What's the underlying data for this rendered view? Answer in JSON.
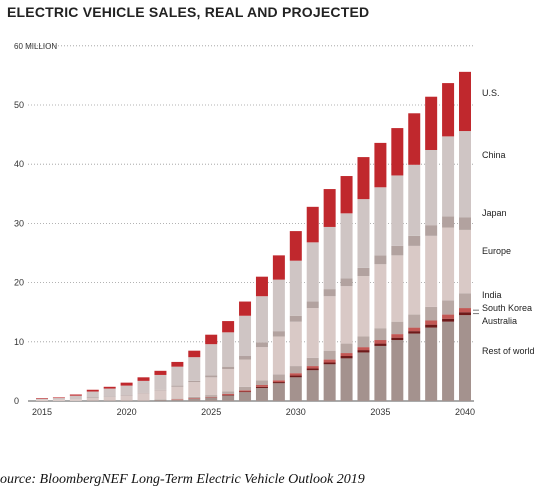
{
  "chart_data": {
    "type": "bar",
    "stacked": true,
    "title": "ELECTRIC VEHICLE SALES, REAL AND PROJECTED",
    "y_top_label": "60 MILLION",
    "ylim": [
      0,
      60
    ],
    "yticks": [
      0,
      10,
      20,
      30,
      40,
      50
    ],
    "xticks": [
      "2015",
      "2020",
      "2025",
      "2030",
      "2035",
      "2040"
    ],
    "categories": [
      "2015",
      "2016",
      "2017",
      "2018",
      "2019",
      "2020",
      "2021",
      "2022",
      "2023",
      "2024",
      "2025",
      "2026",
      "2027",
      "2028",
      "2029",
      "2030",
      "2031",
      "2032",
      "2033",
      "2034",
      "2035",
      "2036",
      "2037",
      "2038",
      "2039",
      "2040"
    ],
    "grid": "horizontal-dotted",
    "legend": "right-inline",
    "series": [
      {
        "name": "Rest of world",
        "color": "#a4928e",
        "values": [
          0.0,
          0.0,
          0.0,
          0.1,
          0.1,
          0.1,
          0.1,
          0.2,
          0.2,
          0.4,
          0.6,
          0.9,
          1.5,
          2.2,
          3.0,
          4.0,
          5.2,
          6.2,
          7.2,
          8.2,
          9.3,
          10.3,
          11.4,
          12.4,
          13.4,
          14.5
        ]
      },
      {
        "name": "Australia",
        "color": "#6e1919",
        "values": [
          0.0,
          0.0,
          0.0,
          0.0,
          0.0,
          0.0,
          0.0,
          0.0,
          0.0,
          0.0,
          0.0,
          0.1,
          0.1,
          0.2,
          0.2,
          0.3,
          0.3,
          0.3,
          0.4,
          0.4,
          0.4,
          0.4,
          0.4,
          0.5,
          0.5,
          0.5
        ]
      },
      {
        "name": "South Korea",
        "color": "#c25754",
        "values": [
          0.0,
          0.0,
          0.0,
          0.0,
          0.0,
          0.0,
          0.0,
          0.0,
          0.1,
          0.1,
          0.1,
          0.2,
          0.2,
          0.3,
          0.3,
          0.4,
          0.4,
          0.5,
          0.5,
          0.5,
          0.6,
          0.6,
          0.6,
          0.7,
          0.7,
          0.7
        ]
      },
      {
        "name": "India",
        "color": "#b8a8a4",
        "values": [
          0.0,
          0.0,
          0.0,
          0.0,
          0.0,
          0.0,
          0.0,
          0.1,
          0.1,
          0.2,
          0.3,
          0.4,
          0.6,
          0.8,
          1.0,
          1.2,
          1.4,
          1.5,
          1.6,
          1.8,
          2.0,
          2.1,
          2.2,
          2.3,
          2.4,
          2.5
        ]
      },
      {
        "name": "Europe",
        "color": "#d9c9c6",
        "values": [
          0.2,
          0.2,
          0.3,
          0.4,
          0.6,
          0.8,
          1.2,
          1.5,
          2.0,
          2.5,
          3.0,
          3.8,
          4.6,
          5.6,
          6.4,
          7.5,
          8.4,
          9.2,
          9.7,
          10.2,
          10.8,
          11.2,
          11.6,
          12.0,
          12.3,
          10.7
        ]
      },
      {
        "name": "Japan",
        "color": "#b2a29f",
        "values": [
          0.0,
          0.0,
          0.0,
          0.1,
          0.1,
          0.1,
          0.1,
          0.1,
          0.2,
          0.2,
          0.3,
          0.4,
          0.6,
          0.8,
          0.9,
          1.0,
          1.1,
          1.2,
          1.3,
          1.4,
          1.5,
          1.6,
          1.7,
          1.8,
          1.9,
          2.1
        ]
      },
      {
        "name": "China",
        "color": "#cfc5c4",
        "values": [
          0.2,
          0.3,
          0.6,
          1.0,
          1.3,
          1.6,
          2.0,
          2.5,
          3.2,
          4.0,
          5.3,
          5.8,
          6.8,
          7.8,
          8.7,
          9.3,
          10.0,
          10.5,
          11.0,
          11.6,
          11.5,
          11.9,
          12.0,
          12.7,
          13.5,
          14.6
        ]
      },
      {
        "name": "U.S.",
        "color": "#c0282d",
        "values": [
          0.1,
          0.1,
          0.2,
          0.3,
          0.3,
          0.5,
          0.6,
          0.7,
          0.8,
          1.1,
          1.6,
          1.9,
          2.4,
          3.3,
          4.1,
          5.0,
          6.0,
          6.4,
          6.3,
          7.1,
          7.5,
          8.0,
          8.7,
          9.0,
          9.0,
          10.0
        ]
      }
    ],
    "source": "ource: BloombergNEF Long-Term Electric Vehicle Outlook 2019"
  }
}
